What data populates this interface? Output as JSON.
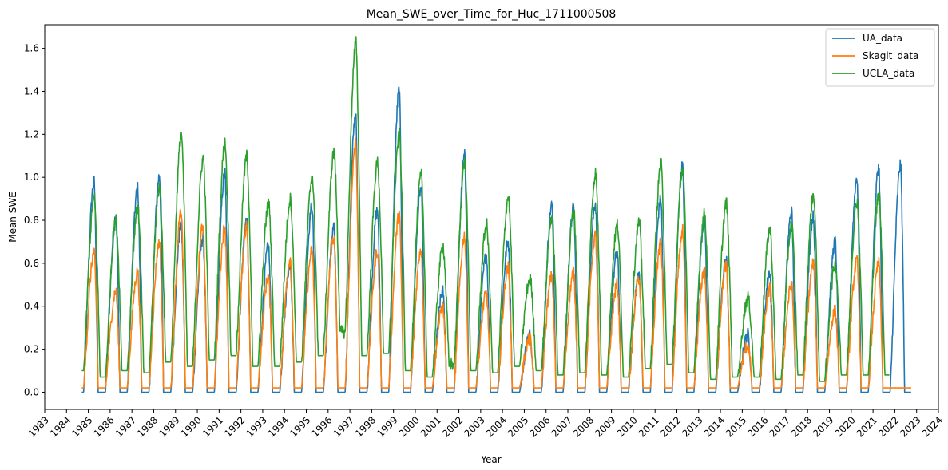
{
  "chart_data": {
    "type": "line",
    "title": "Mean_SWE_over_Time_for_Huc_1711000508",
    "xlabel": "Year",
    "ylabel": "Mean SWE",
    "xlim": [
      1983,
      2024
    ],
    "ylim": [
      -0.08,
      1.71
    ],
    "x_ticks": [
      "1983",
      "1984",
      "1985",
      "1986",
      "1987",
      "1988",
      "1989",
      "1990",
      "1991",
      "1992",
      "1993",
      "1994",
      "1995",
      "1996",
      "1997",
      "1998",
      "1999",
      "2000",
      "2001",
      "2002",
      "2003",
      "2004",
      "2005",
      "2006",
      "2007",
      "2008",
      "2009",
      "2010",
      "2011",
      "2012",
      "2013",
      "2014",
      "2015",
      "2016",
      "2017",
      "2018",
      "2019",
      "2020",
      "2021",
      "2022",
      "2023",
      "2024"
    ],
    "y_ticks": [
      "0.0",
      "0.2",
      "0.4",
      "0.6",
      "0.8",
      "1.0",
      "1.2",
      "1.4",
      "1.6"
    ],
    "legend_position": "top-right",
    "grid": false,
    "x": [
      1985,
      1986,
      1987,
      1988,
      1989,
      1990,
      1991,
      1992,
      1993,
      1994,
      1995,
      1996,
      1997,
      1998,
      1999,
      2000,
      2001,
      2002,
      2003,
      2004,
      2005,
      2006,
      2007,
      2008,
      2009,
      2010,
      2011,
      2012,
      2013,
      2014,
      2015,
      2016,
      2017,
      2018,
      2019,
      2020,
      2021,
      2022
    ],
    "series": [
      {
        "name": "UA_data",
        "color": "#1f77b4",
        "values": [
          0.98,
          0.82,
          0.95,
          1.01,
          0.78,
          0.72,
          1.02,
          0.8,
          0.68,
          0.6,
          0.87,
          0.76,
          1.3,
          0.85,
          1.41,
          0.95,
          0.47,
          1.1,
          0.64,
          0.7,
          0.27,
          0.87,
          0.86,
          0.88,
          0.65,
          0.55,
          0.9,
          1.06,
          0.8,
          0.62,
          0.27,
          0.56,
          0.84,
          0.82,
          0.7,
          1.0,
          1.05,
          1.06
        ],
        "baselines": [
          0,
          0,
          0,
          0,
          0,
          0,
          0,
          0,
          0,
          0,
          0,
          0,
          0,
          0,
          0,
          0,
          0,
          0,
          0,
          0,
          0,
          0,
          0,
          0,
          0,
          0,
          0,
          0,
          0,
          0,
          0,
          0,
          0,
          0,
          0,
          0,
          0,
          0
        ]
      },
      {
        "name": "Skagit_data",
        "color": "#ff7f0e",
        "values": [
          0.65,
          0.47,
          0.56,
          0.7,
          0.84,
          0.78,
          0.77,
          0.77,
          0.54,
          0.62,
          0.66,
          0.72,
          1.17,
          0.66,
          0.83,
          0.67,
          0.4,
          0.73,
          0.46,
          0.58,
          0.25,
          0.54,
          0.56,
          0.73,
          0.5,
          0.53,
          0.7,
          0.75,
          0.57,
          0.59,
          0.22,
          0.48,
          0.5,
          0.6,
          0.38,
          0.61,
          0.6,
          0.0
        ],
        "baselines": [
          0.02,
          0.02,
          0.02,
          0.02,
          0.02,
          0.02,
          0.02,
          0.02,
          0.02,
          0.02,
          0.02,
          0.02,
          0.02,
          0.02,
          0.02,
          0.02,
          0.02,
          0.02,
          0.02,
          0.02,
          0.02,
          0.02,
          0.02,
          0.02,
          0.02,
          0.02,
          0.02,
          0.02,
          0.02,
          0.02,
          0.02,
          0.02,
          0.02,
          0.02,
          0.02,
          0.02,
          0.02,
          0.02
        ]
      },
      {
        "name": "UCLA_data",
        "color": "#2ca02c",
        "values": [
          0.9,
          0.8,
          0.86,
          0.96,
          1.2,
          1.09,
          1.16,
          1.1,
          0.88,
          0.9,
          1.0,
          1.12,
          1.63,
          1.07,
          1.2,
          1.01,
          0.68,
          1.07,
          0.78,
          0.91,
          0.53,
          0.82,
          0.84,
          1.02,
          0.78,
          0.79,
          1.06,
          1.04,
          0.83,
          0.88,
          0.44,
          0.76,
          0.78,
          0.92,
          0.6,
          0.89,
          0.92,
          0.0
        ],
        "baselines": [
          0.1,
          0.07,
          0.1,
          0.09,
          0.14,
          0.12,
          0.15,
          0.17,
          0.12,
          0.12,
          0.14,
          0.17,
          0.28,
          0.17,
          0.18,
          0.1,
          0.07,
          0.13,
          0.1,
          0.09,
          0.12,
          0.1,
          0.08,
          0.09,
          0.08,
          0.07,
          0.11,
          0.13,
          0.09,
          0.06,
          0.07,
          0.07,
          0.06,
          0.08,
          0.05,
          0.08,
          0.08,
          0.08
        ]
      }
    ]
  }
}
